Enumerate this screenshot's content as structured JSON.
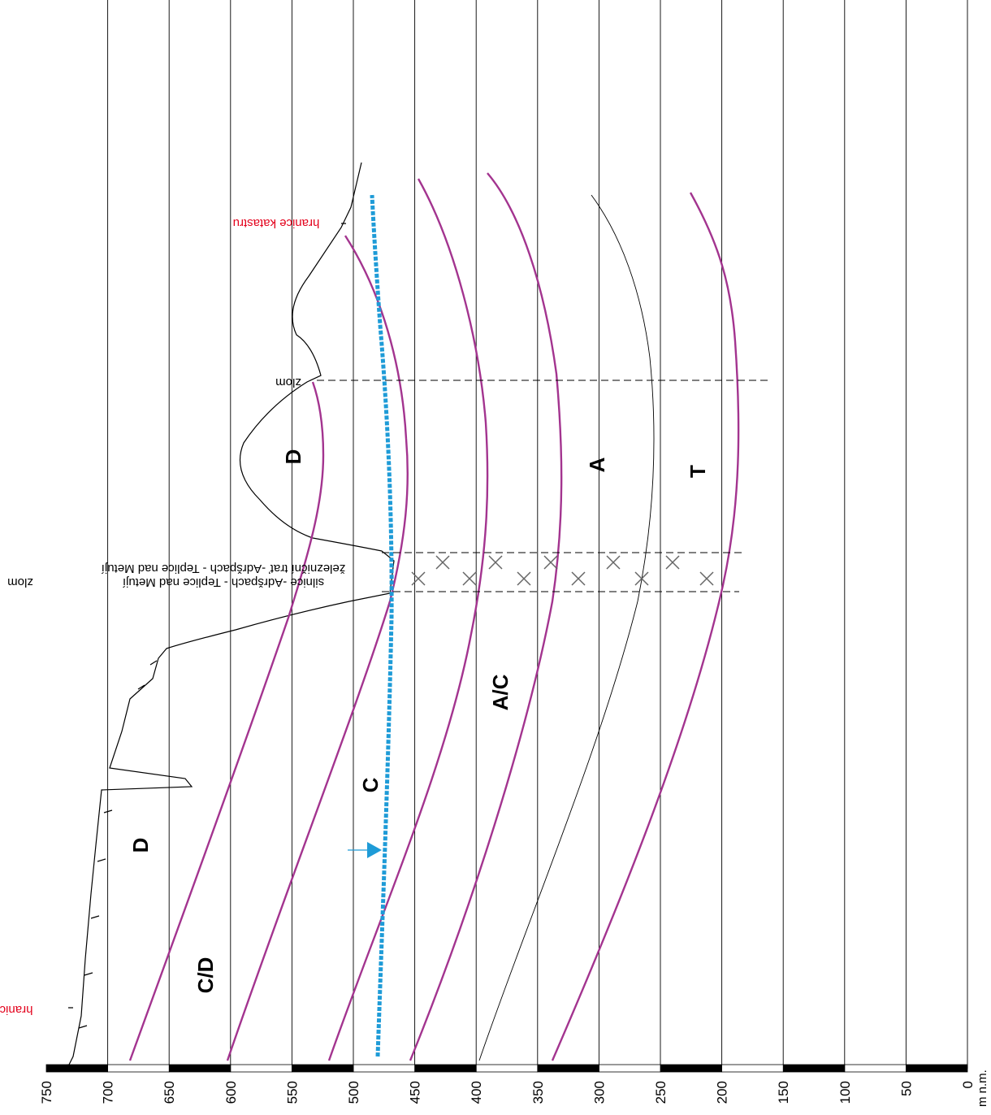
{
  "axis": {
    "unit_label": "m n.m.",
    "ticks": [
      0,
      50,
      100,
      150,
      200,
      250,
      300,
      350,
      400,
      450,
      500,
      550,
      600,
      650,
      700,
      750
    ]
  },
  "labels": {
    "hranice_katastru": "hranice katastru",
    "hranice_k": "hranice k",
    "zlom_1": "zlom",
    "zlom_2": "zlom",
    "railway": "železniční trať -Adršpach - Teplice nad Metují",
    "road": "silnice -Adršpach - Teplice nad Metují",
    "region_d_top": "D",
    "region_a": "A",
    "region_t": "T",
    "region_ac": "A/C",
    "region_c": "C",
    "region_d_bottom": "D",
    "region_cd": "C/D"
  }
}
